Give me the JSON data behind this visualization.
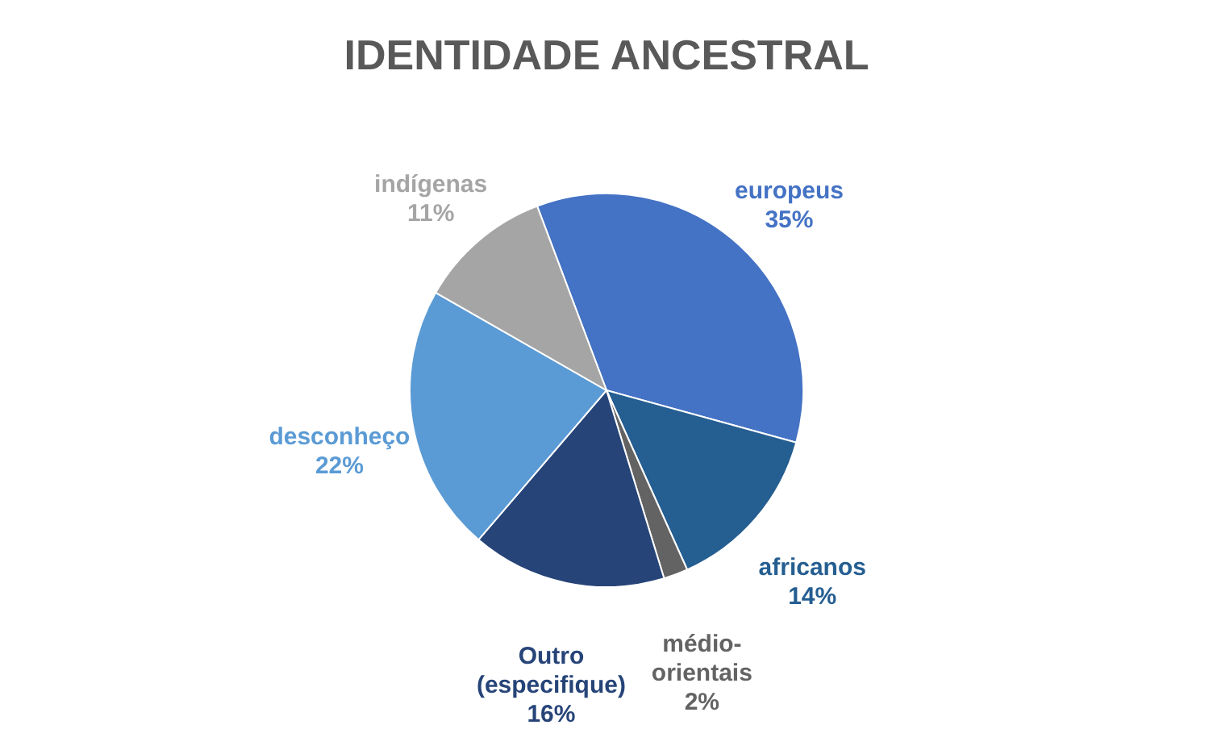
{
  "chart_data": {
    "type": "pie",
    "title": "IDENTIDADE ANCESTRAL",
    "categories": [
      "europeus",
      "africanos",
      "médio-orientais",
      "Outro (especifique)",
      "desconheço",
      "indígenas"
    ],
    "values": [
      35,
      14,
      2,
      16,
      22,
      11
    ],
    "colors": [
      "#4472c4",
      "#255e91",
      "#636363",
      "#264478",
      "#5b9bd5",
      "#a5a5a5"
    ],
    "value_labels": [
      "35%",
      "14%",
      "2%",
      "16%",
      "22%",
      "11%"
    ],
    "legend": false
  }
}
